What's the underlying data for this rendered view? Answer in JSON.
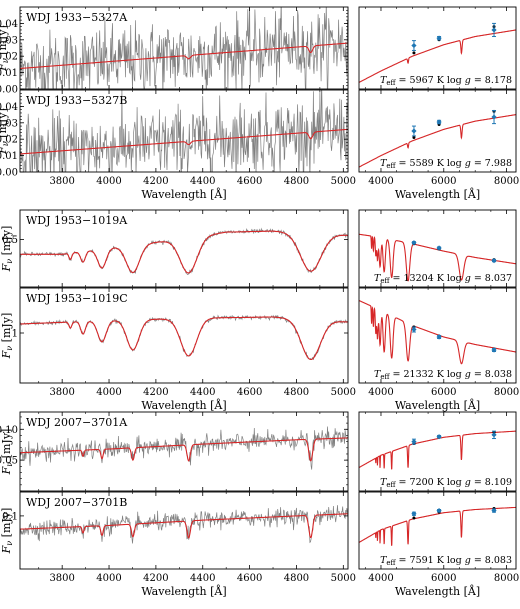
{
  "colors": {
    "observed": "#808080",
    "model": "#d62728",
    "photometry": "#1f77b4"
  },
  "chart_data": [
    {
      "type": "line",
      "group": 0,
      "title": "WDJ 1933−5327A",
      "ylabel": "F_ν [mJy]",
      "xlabel": "",
      "xlim": [
        3620,
        5020
      ],
      "ylim": [
        0,
        0.05
      ],
      "yticks": [
        0.0,
        0.01,
        0.02,
        0.03,
        0.04
      ],
      "ytick_labels": [
        "0.00",
        "0.01",
        "0.02",
        "0.03",
        "0.04"
      ],
      "xticks": [
        3800,
        4000,
        4200,
        4400,
        4600,
        4800,
        5000
      ],
      "xtick_labels": [],
      "continuum": [
        [
          3620,
          0.0125
        ],
        [
          5020,
          0.028
        ]
      ],
      "lines": [
        {
          "x": 4340,
          "depth": 0.002,
          "width": 8
        },
        {
          "x": 4861,
          "depth": 0.004,
          "width": 8
        }
      ],
      "noise": 0.011,
      "has_observed": true,
      "series": [
        {
          "name": "",
          "values": []
        }
      ]
    },
    {
      "type": "line",
      "group": 0,
      "title": "WDJ 1933−5327B",
      "ylabel": "F_ν [mJy]",
      "xlabel": "Wavelength [Å]",
      "xlim": [
        3620,
        5020
      ],
      "ylim": [
        0,
        0.05
      ],
      "yticks": [
        0.0,
        0.01,
        0.02,
        0.03,
        0.04
      ],
      "ytick_labels": [
        "0.00",
        "0.01",
        "0.02",
        "0.03",
        "0.04"
      ],
      "xticks": [
        3800,
        4000,
        4200,
        4400,
        4600,
        4800,
        5000
      ],
      "xtick_labels": [
        "3800",
        "4000",
        "4200",
        "4400",
        "4600",
        "4800",
        "5000"
      ],
      "continuum": [
        [
          3620,
          0.011
        ],
        [
          5020,
          0.026
        ]
      ],
      "lines": [
        {
          "x": 4340,
          "depth": 0.002,
          "width": 8
        },
        {
          "x": 4861,
          "depth": 0.004,
          "width": 8
        }
      ],
      "noise": 0.011,
      "has_observed": true,
      "series": [
        {
          "name": "",
          "values": []
        }
      ]
    },
    {
      "type": "line",
      "group": 1,
      "title": "WDJ 1953−1019A",
      "ylabel": "F_ν [mJy]",
      "xlabel": "",
      "xlim": [
        3620,
        5020
      ],
      "ylim": [
        0.05,
        0.78
      ],
      "yticks": [
        0.5
      ],
      "ytick_labels": [
        "0.5"
      ],
      "xticks": [
        3800,
        4000,
        4200,
        4400,
        4600,
        4800,
        5000
      ],
      "xtick_labels": [],
      "continuum": [
        [
          3620,
          0.36
        ],
        [
          3800,
          0.36
        ],
        [
          4000,
          0.42
        ],
        [
          4300,
          0.5
        ],
        [
          4500,
          0.57
        ],
        [
          4700,
          0.58
        ],
        [
          5020,
          0.54
        ]
      ],
      "lines": [
        {
          "x": 3835,
          "depth": 0.06,
          "width": 6
        },
        {
          "x": 3889,
          "depth": 0.1,
          "width": 10
        },
        {
          "x": 3970,
          "depth": 0.18,
          "width": 18
        },
        {
          "x": 4102,
          "depth": 0.26,
          "width": 28
        },
        {
          "x": 4340,
          "depth": 0.33,
          "width": 36
        },
        {
          "x": 4861,
          "depth": 0.36,
          "width": 44
        }
      ],
      "noise": 0.01,
      "has_observed": true,
      "series": [
        {
          "name": "",
          "values": []
        }
      ]
    },
    {
      "type": "line",
      "group": 1,
      "title": "WDJ 1953−1019C",
      "ylabel": "F_ν [mJy]",
      "xlabel": "Wavelength [Å]",
      "xlim": [
        3620,
        5020
      ],
      "ylim": [
        0.0,
        1.9
      ],
      "yticks": [
        1
      ],
      "ytick_labels": [
        "1"
      ],
      "xticks": [
        3800,
        4000,
        4200,
        4400,
        4600,
        4800,
        5000
      ],
      "xtick_labels": [
        "3800",
        "4000",
        "4200",
        "4400",
        "4600",
        "4800",
        "5000"
      ],
      "continuum": [
        [
          3620,
          1.18
        ],
        [
          4000,
          1.25
        ],
        [
          4400,
          1.3
        ],
        [
          4700,
          1.32
        ],
        [
          5020,
          1.22
        ]
      ],
      "lines": [
        {
          "x": 3835,
          "depth": 0.12,
          "width": 6
        },
        {
          "x": 3889,
          "depth": 0.25,
          "width": 10
        },
        {
          "x": 3970,
          "depth": 0.42,
          "width": 18
        },
        {
          "x": 4102,
          "depth": 0.6,
          "width": 26
        },
        {
          "x": 4340,
          "depth": 0.75,
          "width": 34
        },
        {
          "x": 4861,
          "depth": 0.8,
          "width": 40
        }
      ],
      "noise": 0.02,
      "has_observed": true,
      "series": [
        {
          "name": "",
          "values": []
        }
      ]
    },
    {
      "type": "line",
      "group": 2,
      "title": "WDJ 2007−3701A",
      "ylabel": "F_ν [mJy]",
      "xlabel": "",
      "xlim": [
        3620,
        5020
      ],
      "ylim": [
        0.0,
        0.128
      ],
      "yticks": [
        0.05,
        0.1
      ],
      "ytick_labels": [
        "0.05",
        "0.10"
      ],
      "xticks": [
        3800,
        4000,
        4200,
        4400,
        4600,
        4800,
        5000
      ],
      "xtick_labels": [],
      "continuum": [
        [
          3620,
          0.062
        ],
        [
          4000,
          0.068
        ],
        [
          4400,
          0.076
        ],
        [
          4800,
          0.083
        ],
        [
          5020,
          0.086
        ]
      ],
      "lines": [
        {
          "x": 3889,
          "depth": 0.01,
          "width": 4
        },
        {
          "x": 3970,
          "depth": 0.015,
          "width": 5
        },
        {
          "x": 4102,
          "depth": 0.02,
          "width": 6
        },
        {
          "x": 4340,
          "depth": 0.026,
          "width": 7
        },
        {
          "x": 4861,
          "depth": 0.035,
          "width": 8
        }
      ],
      "noise": 0.0075,
      "has_observed": true,
      "series": [
        {
          "name": "",
          "values": []
        }
      ]
    },
    {
      "type": "line",
      "group": 2,
      "title": "WDJ 2007−3701B",
      "ylabel": "F_ν [mJy]",
      "xlabel": "Wavelength [Å]",
      "xlim": [
        3620,
        5020
      ],
      "ylim": [
        0.0,
        0.145
      ],
      "yticks": [
        0.1
      ],
      "ytick_labels": [
        "0.1"
      ],
      "xticks": [
        3800,
        4000,
        4200,
        4400,
        4600,
        4800,
        5000
      ],
      "xtick_labels": [
        "3800",
        "4000",
        "4200",
        "4400",
        "4600",
        "4800",
        "5000"
      ],
      "continuum": [
        [
          3620,
          0.075
        ],
        [
          4000,
          0.082
        ],
        [
          4400,
          0.092
        ],
        [
          4800,
          0.1
        ],
        [
          5020,
          0.104
        ]
      ],
      "lines": [
        {
          "x": 3889,
          "depth": 0.012,
          "width": 4
        },
        {
          "x": 3970,
          "depth": 0.018,
          "width": 5
        },
        {
          "x": 4102,
          "depth": 0.024,
          "width": 6
        },
        {
          "x": 4340,
          "depth": 0.032,
          "width": 7
        },
        {
          "x": 4861,
          "depth": 0.042,
          "width": 8
        }
      ],
      "noise": 0.008,
      "has_observed": true,
      "series": [
        {
          "name": "",
          "values": []
        }
      ]
    }
  ],
  "sed_panels": [
    {
      "type": "line",
      "group": 0,
      "params": "T_eff = 5967 K log g = 8.178",
      "teff": "5967",
      "logg": "8.178",
      "xlim": [
        3300,
        8300
      ],
      "ylim": [
        0,
        0.05
      ],
      "xticks": [
        4000,
        6000,
        8000
      ],
      "xtick_labels": [],
      "model": [
        [
          3300,
          0.004
        ],
        [
          4000,
          0.011
        ],
        [
          5000,
          0.02
        ],
        [
          6000,
          0.027
        ],
        [
          7000,
          0.032
        ],
        [
          8300,
          0.036
        ]
      ],
      "lines": [
        {
          "x": 4861,
          "depth": 0.003,
          "width": 15
        },
        {
          "x": 6563,
          "depth": 0.008,
          "width": 20
        }
      ],
      "photometry": [
        {
          "x": 5050,
          "y": 0.0265,
          "err": 0.003
        },
        {
          "x": 5850,
          "y": 0.031,
          "err": 0.001
        },
        {
          "x": 7600,
          "y": 0.036,
          "err": 0.004
        }
      ],
      "model_points": [
        {
          "x": 5050,
          "y": 0.022
        },
        {
          "x": 5850,
          "y": 0.03
        },
        {
          "x": 7600,
          "y": 0.038
        }
      ]
    },
    {
      "type": "line",
      "group": 0,
      "params": "T_eff = 5589 K log g = 7.988",
      "teff": "5589",
      "logg": "7.988",
      "xlim": [
        3300,
        8300
      ],
      "ylim": [
        0,
        0.05
      ],
      "xticks": [
        4000,
        6000,
        8000
      ],
      "xtick_labels": [
        "4000",
        "6000",
        "8000"
      ],
      "model": [
        [
          3300,
          0.003
        ],
        [
          4000,
          0.01
        ],
        [
          5000,
          0.019
        ],
        [
          6000,
          0.026
        ],
        [
          7000,
          0.031
        ],
        [
          8300,
          0.035
        ]
      ],
      "lines": [
        {
          "x": 4861,
          "depth": 0.003,
          "width": 15
        },
        {
          "x": 6563,
          "depth": 0.008,
          "width": 20
        }
      ],
      "photometry": [
        {
          "x": 5050,
          "y": 0.025,
          "err": 0.003
        },
        {
          "x": 5850,
          "y": 0.0305,
          "err": 0.001
        },
        {
          "x": 7600,
          "y": 0.0335,
          "err": 0.004
        }
      ],
      "model_points": [
        {
          "x": 5050,
          "y": 0.021
        },
        {
          "x": 5850,
          "y": 0.029
        },
        {
          "x": 7600,
          "y": 0.037
        }
      ]
    },
    {
      "type": "line",
      "group": 1,
      "params": "T_eff = 13204 K log g = 8.037",
      "teff": "13204",
      "logg": "8.037",
      "xlim": [
        3300,
        8300
      ],
      "ylim": [
        0.05,
        0.78
      ],
      "xticks": [
        4000,
        6000,
        8000
      ],
      "xtick_labels": [],
      "model": [
        [
          3300,
          0.55
        ],
        [
          4000,
          0.52
        ],
        [
          5000,
          0.46
        ],
        [
          6000,
          0.39
        ],
        [
          7000,
          0.33
        ],
        [
          8300,
          0.27
        ]
      ],
      "lines": [
        {
          "x": 3700,
          "depth": 0.12,
          "width": 10
        },
        {
          "x": 3760,
          "depth": 0.14,
          "width": 12
        },
        {
          "x": 3835,
          "depth": 0.18,
          "width": 16
        },
        {
          "x": 3889,
          "depth": 0.22,
          "width": 20
        },
        {
          "x": 3970,
          "depth": 0.28,
          "width": 28
        },
        {
          "x": 4102,
          "depth": 0.32,
          "width": 36
        },
        {
          "x": 4340,
          "depth": 0.36,
          "width": 46
        },
        {
          "x": 4861,
          "depth": 0.36,
          "width": 56
        },
        {
          "x": 6563,
          "depth": 0.24,
          "width": 70
        }
      ],
      "photometry": [
        {
          "x": 5050,
          "y": 0.47,
          "err": 0.01
        },
        {
          "x": 5850,
          "y": 0.42,
          "err": 0.01
        },
        {
          "x": 7600,
          "y": 0.3,
          "err": 0.01
        }
      ],
      "model_points": [
        {
          "x": 5050,
          "y": 0.46
        },
        {
          "x": 5850,
          "y": 0.41
        },
        {
          "x": 7600,
          "y": 0.31
        }
      ]
    },
    {
      "type": "line",
      "group": 1,
      "params": "T_eff = 21332 K log g = 8.038",
      "teff": "21332",
      "logg": "8.038",
      "xlim": [
        3300,
        8300
      ],
      "ylim": [
        0.0,
        1.9
      ],
      "xticks": [
        4000,
        6000,
        8000
      ],
      "xtick_labels": [
        "4000",
        "6000",
        "8000"
      ],
      "model": [
        [
          3300,
          1.65
        ],
        [
          4000,
          1.45
        ],
        [
          5000,
          1.15
        ],
        [
          6000,
          0.92
        ],
        [
          7000,
          0.77
        ],
        [
          8300,
          0.62
        ]
      ],
      "lines": [
        {
          "x": 3700,
          "depth": 0.35,
          "width": 10
        },
        {
          "x": 3760,
          "depth": 0.4,
          "width": 12
        },
        {
          "x": 3835,
          "depth": 0.5,
          "width": 16
        },
        {
          "x": 3889,
          "depth": 0.6,
          "width": 20
        },
        {
          "x": 3970,
          "depth": 0.7,
          "width": 26
        },
        {
          "x": 4102,
          "depth": 0.8,
          "width": 34
        },
        {
          "x": 4340,
          "depth": 0.85,
          "width": 44
        },
        {
          "x": 4861,
          "depth": 0.75,
          "width": 54
        },
        {
          "x": 6563,
          "depth": 0.45,
          "width": 70
        }
      ],
      "photometry": [
        {
          "x": 5050,
          "y": 1.07,
          "err": 0.05
        },
        {
          "x": 5850,
          "y": 0.92,
          "err": 0.03
        },
        {
          "x": 7600,
          "y": 0.66,
          "err": 0.03
        }
      ],
      "model_points": [
        {
          "x": 5050,
          "y": 1.12
        },
        {
          "x": 5850,
          "y": 0.94
        },
        {
          "x": 7600,
          "y": 0.68
        }
      ]
    },
    {
      "type": "line",
      "group": 2,
      "params": "T_eff = 7200 K log g = 8.109",
      "teff": "7200",
      "logg": "8.109",
      "xlim": [
        3300,
        8300
      ],
      "ylim": [
        0.0,
        0.128
      ],
      "xticks": [
        4000,
        6000,
        8000
      ],
      "xtick_labels": [],
      "model": [
        [
          3300,
          0.038
        ],
        [
          4000,
          0.058
        ],
        [
          5000,
          0.076
        ],
        [
          6000,
          0.087
        ],
        [
          7000,
          0.093
        ],
        [
          8300,
          0.097
        ]
      ],
      "lines": [
        {
          "x": 3835,
          "depth": 0.01,
          "width": 4
        },
        {
          "x": 3889,
          "depth": 0.014,
          "width": 5
        },
        {
          "x": 3970,
          "depth": 0.02,
          "width": 6
        },
        {
          "x": 4102,
          "depth": 0.024,
          "width": 8
        },
        {
          "x": 4340,
          "depth": 0.03,
          "width": 10
        },
        {
          "x": 4861,
          "depth": 0.036,
          "width": 14
        },
        {
          "x": 6563,
          "depth": 0.04,
          "width": 18
        }
      ],
      "photometry": [
        {
          "x": 5050,
          "y": 0.08,
          "err": 0.004
        },
        {
          "x": 5850,
          "y": 0.088,
          "err": 0.002
        },
        {
          "x": 7600,
          "y": 0.091,
          "err": 0.006
        }
      ],
      "model_points": [
        {
          "x": 5050,
          "y": 0.077
        },
        {
          "x": 5850,
          "y": 0.087
        },
        {
          "x": 7600,
          "y": 0.095
        }
      ]
    },
    {
      "type": "line",
      "group": 2,
      "params": "T_eff = 7591 K log g = 8.083",
      "teff": "7591",
      "logg": "8.083",
      "xlim": [
        3300,
        8300
      ],
      "ylim": [
        0.0,
        0.145
      ],
      "xticks": [
        4000,
        6000,
        8000
      ],
      "xtick_labels": [
        "4000",
        "6000",
        "8000"
      ],
      "model": [
        [
          3300,
          0.05
        ],
        [
          4000,
          0.074
        ],
        [
          5000,
          0.094
        ],
        [
          6000,
          0.106
        ],
        [
          7000,
          0.112
        ],
        [
          8300,
          0.116
        ]
      ],
      "lines": [
        {
          "x": 3835,
          "depth": 0.012,
          "width": 4
        },
        {
          "x": 3889,
          "depth": 0.018,
          "width": 5
        },
        {
          "x": 3970,
          "depth": 0.025,
          "width": 6
        },
        {
          "x": 4102,
          "depth": 0.03,
          "width": 8
        },
        {
          "x": 4340,
          "depth": 0.038,
          "width": 10
        },
        {
          "x": 4861,
          "depth": 0.045,
          "width": 14
        },
        {
          "x": 6563,
          "depth": 0.05,
          "width": 18
        }
      ],
      "photometry": [
        {
          "x": 5050,
          "y": 0.104,
          "err": 0.003
        },
        {
          "x": 5850,
          "y": 0.11,
          "err": 0.002
        },
        {
          "x": 7600,
          "y": 0.11,
          "err": 0.003
        }
      ],
      "model_points": [
        {
          "x": 5050,
          "y": 0.096
        },
        {
          "x": 5850,
          "y": 0.107
        },
        {
          "x": 7600,
          "y": 0.114
        }
      ]
    }
  ]
}
